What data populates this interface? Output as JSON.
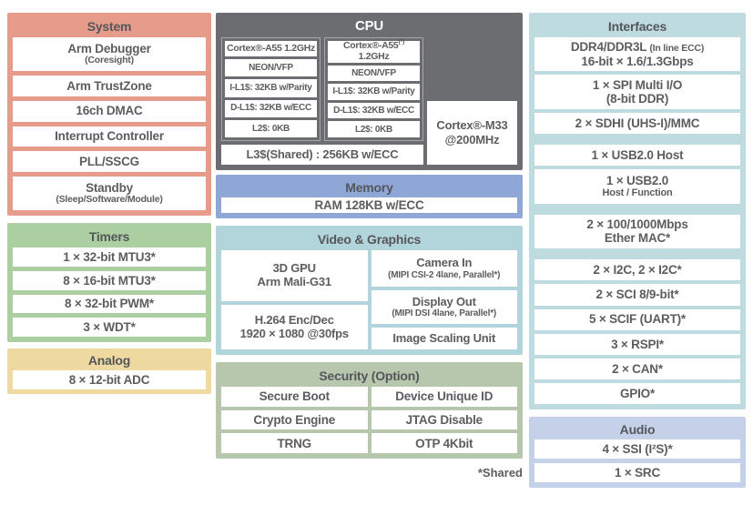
{
  "colors": {
    "salmon": "#e69b8b",
    "green": "#abcfa0",
    "tan": "#eed9a1",
    "darkgray": "#6c6d70",
    "blue": "#8ea7d6",
    "teal": "#b2d5db",
    "sage": "#b6c7ad",
    "teal2": "#bedce0",
    "periwinkle": "#c4d1e9",
    "ink": "#5c5d60",
    "ink-dark": "#55565a"
  },
  "system": {
    "title": "System",
    "rows": [
      {
        "main": "Arm Debugger",
        "sub": "(Coresight)"
      },
      {
        "main": "Arm TrustZone"
      },
      {
        "main": "16ch DMAC"
      },
      {
        "main": "Interrupt Controller"
      },
      {
        "main": "PLL/SSCG"
      },
      {
        "main": "Standby",
        "sub": "(Sleep/Software/Module)"
      }
    ]
  },
  "timers": {
    "title": "Timers",
    "rows": [
      {
        "main": "1 × 32-bit MTU3*"
      },
      {
        "main": "8 × 16-bit MTU3*"
      },
      {
        "main": "8 × 32-bit PWM*"
      },
      {
        "main": "3 × WDT*"
      }
    ]
  },
  "analog": {
    "title": "Analog",
    "rows": [
      {
        "main": "8 × 12-bit ADC"
      }
    ]
  },
  "cpu": {
    "title": "CPU",
    "core1": {
      "name": "Cortex®-A55 1.2GHz",
      "cells": [
        "NEON/VFP",
        "I-L1$: 32KB w/Parity",
        "D-L1$: 32KB w/ECC",
        "L2$: 0KB"
      ]
    },
    "core2": {
      "name_main": "Cortex®-A55",
      "name_sup": "(*)",
      "name_post": " 1.2GHz",
      "cells": [
        "NEON/VFP",
        "I-L1$: 32KB w/Parity",
        "D-L1$: 32KB w/ECC",
        "L2$: 0KB"
      ]
    },
    "l3": "L3$(Shared) : 256KB w/ECC",
    "m33_line1": "Cortex®-M33",
    "m33_line2": "@200MHz"
  },
  "memory": {
    "title": "Memory",
    "rows": [
      {
        "main": "RAM 128KB w/ECC"
      }
    ]
  },
  "video": {
    "title": "Video & Graphics",
    "left": [
      {
        "line1": "3D GPU",
        "line2": "Arm Mali-G31"
      },
      {
        "line1": "H.264 Enc/Dec",
        "line2": "1920 × 1080 @30fps"
      }
    ],
    "right": [
      {
        "main": "Camera In",
        "sub": "(MIPI CSI-2 4lane, Parallel*)"
      },
      {
        "main": "Display Out",
        "sub": "(MIPI DSI 4lane, Parallel*)"
      },
      {
        "main": "Image Scaling Unit"
      }
    ]
  },
  "security": {
    "title": "Security (Option)",
    "left": [
      "Secure Boot",
      "Crypto Engine",
      "TRNG"
    ],
    "right": [
      "Device Unique ID",
      "JTAG Disable",
      "OTP 4Kbit"
    ]
  },
  "interfaces": {
    "title": "Interfaces",
    "g1": [
      {
        "main": "DDR4/DDR3L",
        "inline_small": "(In line ECC)",
        "line2": "16-bit × 1.6/1.3Gbps"
      },
      {
        "main": "1 × SPI Multi I/O",
        "line2": "(8-bit DDR)"
      },
      {
        "main": "2 × SDHI (UHS-I)/MMC"
      }
    ],
    "g2": [
      {
        "main": "1 × USB2.0 Host"
      },
      {
        "main": "1 × USB2.0",
        "line2_small": "Host / Function"
      }
    ],
    "g3": [
      {
        "main": "2 × 100/1000Mbps",
        "line2": "Ether MAC*"
      }
    ],
    "g4": [
      {
        "main": "2 × I2C, 2 × I2C*"
      },
      {
        "main": "2 × SCI 8/9-bit*"
      },
      {
        "main": "5 × SCIF (UART)*"
      },
      {
        "main": "3 × RSPI*"
      },
      {
        "main": "2 × CAN*"
      },
      {
        "main": "GPIO*"
      }
    ]
  },
  "audio": {
    "title": "Audio",
    "rows": [
      {
        "main": "4 × SSI (I²S)*"
      },
      {
        "main": "1 × SRC"
      }
    ]
  },
  "footnote": "*Shared"
}
